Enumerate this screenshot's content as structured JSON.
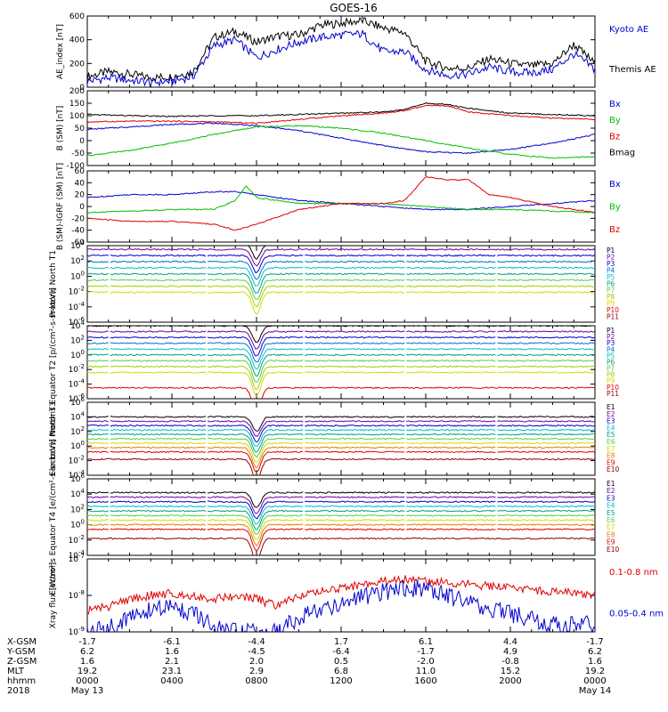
{
  "title": "GOES-16",
  "colors": {
    "black": "#000000",
    "red": "#e00000",
    "green": "#00c000",
    "blue": "#0000d0",
    "navy": "#000080",
    "purple": "#7000a0",
    "cyan": "#00c0c0",
    "teal": "#009090",
    "lime": "#50d050",
    "yellow": "#d8d800",
    "orange": "#e08000",
    "darkred": "#900000"
  },
  "x_ticks": [
    "0000",
    "0400",
    "0800",
    "1200",
    "1600",
    "2000",
    "0000"
  ],
  "x_range_hours": [
    0,
    24
  ],
  "footer": {
    "labels": [
      "X-GSM",
      "Y-GSM",
      "Z-GSM",
      "MLT",
      "hhmm",
      "2018"
    ],
    "rows": [
      [
        "-1.7",
        "-6.1",
        "-4.4",
        "1.7",
        "6.1",
        "4.4",
        "-1.7"
      ],
      [
        "6.2",
        "1.6",
        "-4.5",
        "-6.4",
        "-1.7",
        "4.9",
        "6.2"
      ],
      [
        "1.6",
        "2.1",
        "2.0",
        "0.5",
        "-2.0",
        "-0.8",
        "1.6"
      ],
      [
        "19.2",
        "23.1",
        "2.9",
        "6.8",
        "11.0",
        "15.2",
        "19.2"
      ],
      [
        "0000",
        "0400",
        "0800",
        "1200",
        "1600",
        "2000",
        "0000"
      ]
    ],
    "date_start": "May 13",
    "date_end": "May 14"
  },
  "chart_data": [
    {
      "type": "line",
      "ylabel": "AE_index [nT]",
      "ylim": [
        0,
        600
      ],
      "yticks": [
        "0",
        "200",
        "400",
        "600"
      ],
      "legend": [
        {
          "name": "Kyoto AE",
          "color": "#0000d0"
        },
        {
          "name": "Themis AE",
          "color": "#000000"
        }
      ],
      "series": [
        {
          "name": "Themis AE",
          "color": "#000000",
          "x": [
            0,
            1,
            2,
            3,
            4,
            5,
            6,
            7,
            8,
            9,
            10,
            11,
            12,
            13,
            14,
            15,
            16,
            17,
            18,
            19,
            20,
            21,
            22,
            23,
            24
          ],
          "y": [
            90,
            130,
            110,
            80,
            90,
            130,
            420,
            470,
            380,
            430,
            440,
            520,
            540,
            560,
            500,
            460,
            220,
            160,
            160,
            240,
            200,
            180,
            200,
            360,
            200
          ]
        },
        {
          "name": "Kyoto AE",
          "color": "#0000d0",
          "x": [
            0,
            1,
            2,
            3,
            4,
            5,
            6,
            7,
            8,
            9,
            10,
            11,
            12,
            13,
            14,
            15,
            16,
            17,
            18,
            19,
            20,
            21,
            22,
            23,
            24
          ],
          "y": [
            50,
            80,
            60,
            40,
            50,
            90,
            350,
            400,
            250,
            320,
            380,
            420,
            440,
            450,
            300,
            300,
            150,
            100,
            110,
            170,
            130,
            120,
            150,
            280,
            150
          ]
        }
      ]
    },
    {
      "type": "line",
      "ylabel": "B (SM) [nT]",
      "ylim": [
        -100,
        200
      ],
      "yticks": [
        "-100",
        "-50",
        "0",
        "50",
        "100",
        "150",
        "200"
      ],
      "legend": [
        {
          "name": "Bx",
          "color": "#0000d0"
        },
        {
          "name": "By",
          "color": "#00c000"
        },
        {
          "name": "Bz",
          "color": "#e00000"
        },
        {
          "name": "Bmag",
          "color": "#000000"
        }
      ],
      "series": [
        {
          "name": "Bx",
          "color": "#0000d0",
          "x": [
            0,
            2,
            4,
            6,
            8,
            10,
            12,
            14,
            16,
            18,
            20,
            22,
            24
          ],
          "y": [
            45,
            55,
            65,
            70,
            60,
            40,
            10,
            -20,
            -45,
            -50,
            -35,
            -10,
            25
          ]
        },
        {
          "name": "By",
          "color": "#00c000",
          "x": [
            0,
            2,
            4,
            6,
            8,
            10,
            12,
            14,
            16,
            18,
            20,
            22,
            24
          ],
          "y": [
            -60,
            -40,
            -10,
            25,
            55,
            60,
            50,
            30,
            0,
            -30,
            -55,
            -70,
            -65
          ]
        },
        {
          "name": "Bz",
          "color": "#e00000",
          "x": [
            0,
            2,
            4,
            6,
            8,
            10,
            12,
            14,
            15,
            16,
            17,
            18,
            20,
            22,
            24
          ],
          "y": [
            75,
            78,
            78,
            75,
            70,
            85,
            100,
            110,
            120,
            140,
            140,
            115,
            100,
            90,
            85
          ]
        },
        {
          "name": "Bmag",
          "color": "#000000",
          "x": [
            0,
            2,
            4,
            6,
            8,
            10,
            12,
            14,
            15,
            16,
            17,
            18,
            20,
            22,
            24
          ],
          "y": [
            105,
            100,
            97,
            100,
            100,
            105,
            110,
            115,
            125,
            150,
            145,
            130,
            110,
            105,
            100
          ]
        }
      ]
    },
    {
      "type": "line",
      "ylabel": "B (SM)-IGRF (SM) [nT]",
      "ylim": [
        -60,
        60
      ],
      "yticks": [
        "-60",
        "-40",
        "-20",
        "0",
        "20",
        "40",
        "60"
      ],
      "legend": [
        {
          "name": "Bx",
          "color": "#0000d0"
        },
        {
          "name": "By",
          "color": "#00c000"
        },
        {
          "name": "Bz",
          "color": "#e00000"
        }
      ],
      "series": [
        {
          "name": "Bx",
          "color": "#0000d0",
          "x": [
            0,
            2,
            4,
            6,
            7,
            8,
            10,
            12,
            14,
            16,
            18,
            20,
            22,
            24
          ],
          "y": [
            15,
            20,
            20,
            25,
            25,
            20,
            10,
            5,
            0,
            -5,
            -5,
            0,
            5,
            10
          ]
        },
        {
          "name": "By",
          "color": "#00c000",
          "x": [
            0,
            2,
            4,
            6,
            7,
            7.5,
            8,
            10,
            12,
            14,
            16,
            18,
            20,
            22,
            24
          ],
          "y": [
            -10,
            -8,
            -5,
            -5,
            10,
            35,
            15,
            5,
            5,
            5,
            0,
            -5,
            -5,
            -8,
            -10
          ]
        },
        {
          "name": "Bz",
          "color": "#e00000",
          "x": [
            0,
            2,
            4,
            6,
            7,
            8,
            10,
            12,
            14,
            15,
            16,
            17,
            18,
            19,
            20,
            22,
            24
          ],
          "y": [
            -20,
            -25,
            -25,
            -30,
            -40,
            -30,
            -5,
            5,
            5,
            10,
            50,
            45,
            45,
            20,
            15,
            0,
            -10
          ]
        }
      ]
    },
    {
      "type": "line",
      "scale": "log",
      "ylabel": "Protons North T1",
      "ylim_exp": [
        -6,
        4
      ],
      "yticks": [
        "10^-6",
        "10^-4",
        "10^-2",
        "10^0",
        "10^2",
        "10^4"
      ],
      "series_names": [
        "P1",
        "P2",
        "P3",
        "P4",
        "P5",
        "P6",
        "P7",
        "P8",
        "P9",
        "P10",
        "P11"
      ],
      "series_colors": [
        "#000000",
        "#7000a0",
        "#0000d0",
        "#0070d0",
        "#00c0c0",
        "#00a080",
        "#50d050",
        "#a0d000",
        "#d8d800",
        "#e00000",
        "#900000"
      ],
      "levels": [
        4.3,
        3.5,
        2.7,
        1.9,
        1.1,
        0.3,
        -0.5,
        -1.3,
        -2.1,
        null,
        null
      ],
      "dip": {
        "x": 8,
        "depth": 2.0
      }
    },
    {
      "type": "line",
      "scale": "log",
      "ylabel": "Protons Equator T2 [p/(cm²-s-sr-keV)]",
      "ylim_exp": [
        -6,
        4
      ],
      "yticks": [
        "10^-6",
        "10^-4",
        "10^-2",
        "10^0",
        "10^2",
        "10^4"
      ],
      "series_names": [
        "P1",
        "P2",
        "P3",
        "P4",
        "P5",
        "P6",
        "P7",
        "P8",
        "P9",
        "P10",
        "P11"
      ],
      "series_colors": [
        "#000000",
        "#7000a0",
        "#0000d0",
        "#0070d0",
        "#00c0c0",
        "#00a080",
        "#50d050",
        "#a0d000",
        "#d8d800",
        "#e00000",
        "#900000"
      ],
      "levels": [
        4.0,
        3.2,
        2.4,
        1.6,
        0.8,
        0.0,
        -0.8,
        -1.6,
        -2.4,
        -4.5,
        null
      ],
      "dip": {
        "x": 8,
        "depth": 2.3
      }
    },
    {
      "type": "line",
      "scale": "log",
      "ylabel": "Electrons North T3",
      "ylim_exp": [
        -4,
        6
      ],
      "yticks": [
        "10^-4",
        "10^-2",
        "10^0",
        "10^2",
        "10^4",
        "10^6"
      ],
      "series_names": [
        "E1",
        "E2",
        "E3",
        "E4",
        "E5",
        "E6",
        "E7",
        "E8",
        "E9",
        "E10"
      ],
      "series_colors": [
        "#000000",
        "#7000a0",
        "#0000d0",
        "#00c0c0",
        "#00a080",
        "#50d050",
        "#d8d800",
        "#e08000",
        "#e00000",
        "#900000"
      ],
      "levels": [
        4.0,
        3.4,
        2.8,
        2.2,
        1.6,
        1.0,
        0.4,
        -0.2,
        -0.8,
        -1.8
      ],
      "dip": {
        "x": 8,
        "depth": 2.0
      }
    },
    {
      "type": "line",
      "scale": "log",
      "ylabel": "Electrons Equator T4 [e/(cm²-s-sr-keV)]",
      "ylim_exp": [
        -4,
        6
      ],
      "yticks": [
        "10^-4",
        "10^-2",
        "10^0",
        "10^2",
        "10^4",
        "10^6"
      ],
      "series_names": [
        "E1",
        "E2",
        "E3",
        "E4",
        "E5",
        "E6",
        "E7",
        "E8",
        "E9",
        "E10"
      ],
      "series_colors": [
        "#000000",
        "#7000a0",
        "#0000d0",
        "#00c0c0",
        "#00a080",
        "#50d050",
        "#d8d800",
        "#e08000",
        "#e00000",
        "#900000"
      ],
      "levels": [
        4.2,
        3.6,
        3.0,
        2.4,
        1.8,
        1.2,
        0.6,
        0.0,
        -0.6,
        -1.8
      ],
      "dip": {
        "x": 8,
        "depth": 2.0
      }
    },
    {
      "type": "line",
      "scale": "log",
      "ylabel": "Xray flux [W/m²]",
      "ylim_exp": [
        -9,
        -7
      ],
      "yticks": [
        "10^-9",
        "10^-8",
        "10^-7"
      ],
      "legend": [
        {
          "name": "0.1-0.8 nm",
          "color": "#e00000"
        },
        {
          "name": "0.05-0.4 nm",
          "color": "#0000d0"
        }
      ],
      "series": [
        {
          "name": "0.1-0.8 nm",
          "color": "#e00000",
          "x": [
            0,
            1,
            2,
            3,
            4,
            5,
            6,
            7,
            8,
            9,
            10,
            12,
            14,
            15,
            16,
            17,
            18,
            20,
            22,
            24
          ],
          "y": [
            -8.4,
            -8.3,
            -8.1,
            -8.0,
            -7.95,
            -8.0,
            -8.1,
            -8.0,
            -8.1,
            -8.3,
            -8.0,
            -7.8,
            -7.6,
            -7.55,
            -7.6,
            -7.65,
            -7.7,
            -7.8,
            -7.9,
            -8.0
          ]
        },
        {
          "name": "0.05-0.4 nm",
          "color": "#0000d0",
          "x": [
            0,
            1,
            2,
            3,
            4,
            5,
            6,
            7,
            8,
            9,
            10,
            12,
            14,
            15,
            16,
            17,
            18,
            20,
            22,
            24
          ],
          "y": [
            -9.0,
            -8.9,
            -8.6,
            -8.4,
            -8.3,
            -8.5,
            -8.9,
            -9.0,
            -9.0,
            -9.0,
            -8.6,
            -8.2,
            -7.9,
            -7.8,
            -7.85,
            -8.0,
            -8.2,
            -8.5,
            -8.8,
            -8.8
          ]
        }
      ]
    }
  ]
}
